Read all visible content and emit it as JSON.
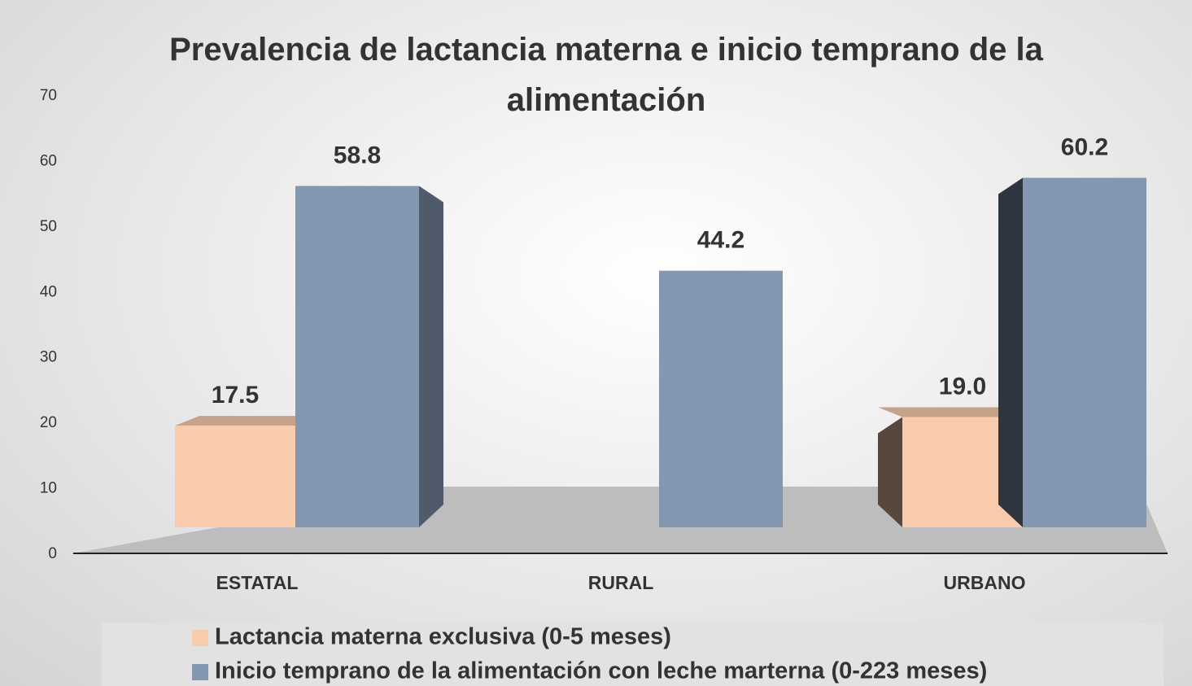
{
  "chart_data": {
    "type": "bar3d",
    "title": "Prevalencia de lactancia materna e inicio temprano de la alimentación",
    "categories": [
      "ESTATAL",
      "RURAL",
      "URBANO"
    ],
    "series": [
      {
        "name": "Lactancia materna exclusiva (0-5 meses)",
        "color": "#f8cbad",
        "values": [
          17.5,
          null,
          19.0
        ],
        "value_labels": [
          "17.5",
          null,
          "19.0"
        ]
      },
      {
        "name": "Inicio temprano de la alimentación con leche marterna (0-223 meses)",
        "color": "#8497b0",
        "values": [
          58.8,
          44.2,
          60.2
        ],
        "value_labels": [
          "58.8",
          "44.2",
          "60.2"
        ]
      }
    ],
    "ylim": [
      0,
      70
    ],
    "yticks": [
      0,
      10,
      20,
      30,
      40,
      50,
      60,
      70
    ],
    "legend": "bottom"
  }
}
